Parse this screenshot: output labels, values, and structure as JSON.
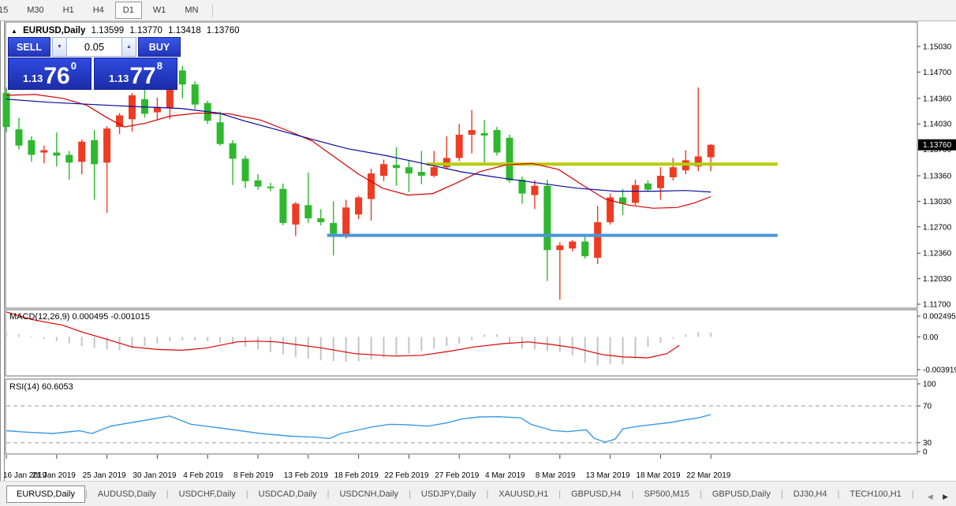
{
  "toolbar": {
    "timeframes": [
      "15",
      "M30",
      "H1",
      "H4",
      "D1",
      "W1",
      "MN"
    ],
    "active_timeframe": "D1"
  },
  "chart_header": {
    "collapse_icon": "▲",
    "symbol": "EURUSD,Daily",
    "open": "1.13599",
    "high": "1.13770",
    "low": "1.13418",
    "close": "1.13760"
  },
  "trade_panel": {
    "sell_label": "SELL",
    "buy_label": "BUY",
    "volume": "0.05",
    "spin_down_icon": "▼",
    "spin_up_icon": "▲",
    "sell_price_small": "1.13",
    "sell_price_big": "76",
    "sell_price_sup": "0",
    "buy_price_small": "1.13",
    "buy_price_big": "77",
    "buy_price_sup": "8"
  },
  "macd_panel": {
    "title": "MACD(12,26,9)",
    "value1": "0.000495",
    "value2": "-0.001015",
    "axis_labels": [
      "0.002495",
      "0.00",
      "-0.003919"
    ]
  },
  "rsi_panel": {
    "title": "RSI(14)",
    "value": "60.6053",
    "axis_labels": [
      "100",
      "70",
      "30",
      "0"
    ]
  },
  "price_axis": {
    "labels": [
      "1.15030",
      "1.14700",
      "1.14360",
      "1.14030",
      "1.13700",
      "1.13360",
      "1.13030",
      "1.12700",
      "1.12360",
      "1.12030",
      "1.11700"
    ],
    "current_price": "1.13760"
  },
  "date_axis": {
    "labels": [
      "16 Jan 2019",
      "21 Jan 2019",
      "25 Jan 2019",
      "30 Jan 2019",
      "4 Feb 2019",
      "8 Feb 2019",
      "13 Feb 2019",
      "18 Feb 2019",
      "22 Feb 2019",
      "27 Feb 2019",
      "4 Mar 2019",
      "8 Mar 2019",
      "13 Mar 2019",
      "18 Mar 2019",
      "22 Mar 2019"
    ],
    "label_step": 4
  },
  "tabs": {
    "items": [
      "EURUSD,Daily",
      "AUDUSD,Daily",
      "USDCHF,Daily",
      "USDCAD,Daily",
      "USDCNH,Daily",
      "USDJPY,Daily",
      "XAUUSD,H1",
      "GBPUSD,H4",
      "SP500,M15",
      "GBPUSD,Daily",
      "DJ30,H4",
      "TECH100,H1",
      "Ul"
    ],
    "active": "EURUSD,Daily",
    "scroll_left_icon": "◀",
    "scroll_right_icon": "▶"
  },
  "colors": {
    "bull_candle": "#ee3b22",
    "bear_candle": "#2eb82e",
    "ma_fast_red": "#d40000",
    "ma_slow_blue": "#0a0aa0",
    "macd_bar": "#c4c4c4",
    "macd_signal": "#dd0000",
    "rsi_line": "#3a9ae8",
    "hline_yellow": "#b5cc00",
    "hline_blue": "#4a96d8",
    "price_tag_bg": "#000000",
    "price_tag_text": "#ffffff",
    "panel_border": "#707070",
    "grid_dash": "#bbbbbb"
  },
  "chart_data": {
    "type": "candlestick",
    "title": "EURUSD,Daily",
    "ylim": [
      1.117,
      1.1503
    ],
    "legend_position": "none",
    "grid": false,
    "note": "red bodies = up days, green bodies = down days; OHLC per bar below",
    "candles": [
      [
        1.1443,
        1.145,
        1.1392,
        1.1399,
        "g"
      ],
      [
        1.1396,
        1.1411,
        1.137,
        1.1375,
        "g"
      ],
      [
        1.1382,
        1.1387,
        1.1354,
        1.1363,
        "g"
      ],
      [
        1.1366,
        1.1375,
        1.1352,
        1.1369,
        "r"
      ],
      [
        1.1366,
        1.1392,
        1.1348,
        1.1362,
        "g"
      ],
      [
        1.1363,
        1.1368,
        1.1331,
        1.1353,
        "g"
      ],
      [
        1.1354,
        1.1383,
        1.1338,
        1.138,
        "r"
      ],
      [
        1.1382,
        1.1395,
        1.1305,
        1.1351,
        "g"
      ],
      [
        1.1353,
        1.14,
        1.1288,
        1.1397,
        "r"
      ],
      [
        1.1399,
        1.1417,
        1.139,
        1.1414,
        "r"
      ],
      [
        1.1409,
        1.1443,
        1.1393,
        1.144,
        "r"
      ],
      [
        1.1435,
        1.1448,
        1.1411,
        1.1416,
        "g"
      ],
      [
        1.1418,
        1.1437,
        1.1409,
        1.1425,
        "r"
      ],
      [
        1.1423,
        1.1452,
        1.1409,
        1.1447,
        "r"
      ],
      [
        1.1472,
        1.1478,
        1.1436,
        1.1454,
        "g"
      ],
      [
        1.1454,
        1.1458,
        1.1422,
        1.1428,
        "g"
      ],
      [
        1.143,
        1.1433,
        1.1403,
        1.1407,
        "g"
      ],
      [
        1.1405,
        1.1419,
        1.1375,
        1.1377,
        "g"
      ],
      [
        1.1378,
        1.1382,
        1.1324,
        1.1358,
        "g"
      ],
      [
        1.1358,
        1.1362,
        1.132,
        1.1329,
        "g"
      ],
      [
        1.133,
        1.1338,
        1.1318,
        1.1322,
        "g"
      ],
      [
        1.1322,
        1.1327,
        1.1316,
        1.132,
        "g"
      ],
      [
        1.1319,
        1.1326,
        1.1272,
        1.1275,
        "g"
      ],
      [
        1.1273,
        1.1302,
        1.1258,
        1.13,
        "r"
      ],
      [
        1.1298,
        1.134,
        1.1275,
        1.1281,
        "g"
      ],
      [
        1.1281,
        1.1293,
        1.1272,
        1.1276,
        "g"
      ],
      [
        1.1275,
        1.1303,
        1.1233,
        1.1261,
        "g"
      ],
      [
        1.1259,
        1.1305,
        1.1255,
        1.1295,
        "r"
      ],
      [
        1.1286,
        1.131,
        1.128,
        1.1308,
        "r"
      ],
      [
        1.1306,
        1.1345,
        1.1278,
        1.1339,
        "r"
      ],
      [
        1.1336,
        1.1357,
        1.1329,
        1.1351,
        "r"
      ],
      [
        1.135,
        1.1373,
        1.1323,
        1.1346,
        "g"
      ],
      [
        1.1347,
        1.1356,
        1.1315,
        1.1339,
        "g"
      ],
      [
        1.1341,
        1.1368,
        1.1325,
        1.1336,
        "g"
      ],
      [
        1.1336,
        1.1368,
        1.1334,
        1.1347,
        "r"
      ],
      [
        1.1347,
        1.1387,
        1.1344,
        1.1359,
        "r"
      ],
      [
        1.1359,
        1.1403,
        1.1355,
        1.1389,
        "r"
      ],
      [
        1.1389,
        1.1421,
        1.1365,
        1.1395,
        "r"
      ],
      [
        1.1391,
        1.1408,
        1.1352,
        1.1388,
        "g"
      ],
      [
        1.1395,
        1.1399,
        1.1362,
        1.1366,
        "g"
      ],
      [
        1.1385,
        1.1389,
        1.1327,
        1.133,
        "g"
      ],
      [
        1.1331,
        1.1335,
        1.13,
        1.1313,
        "g"
      ],
      [
        1.1311,
        1.133,
        1.1293,
        1.1323,
        "r"
      ],
      [
        1.1323,
        1.1331,
        1.12,
        1.124,
        "g"
      ],
      [
        1.124,
        1.125,
        1.1176,
        1.1246,
        "r"
      ],
      [
        1.1242,
        1.1253,
        1.1238,
        1.1251,
        "r"
      ],
      [
        1.1251,
        1.1258,
        1.1229,
        1.1232,
        "g"
      ],
      [
        1.123,
        1.1297,
        1.1222,
        1.1276,
        "r"
      ],
      [
        1.1276,
        1.1313,
        1.1273,
        1.1308,
        "r"
      ],
      [
        1.1308,
        1.1319,
        1.1285,
        1.13,
        "g"
      ],
      [
        1.1301,
        1.1331,
        1.1298,
        1.1324,
        "r"
      ],
      [
        1.1326,
        1.133,
        1.1315,
        1.1318,
        "g"
      ],
      [
        1.132,
        1.1347,
        1.1305,
        1.1336,
        "r"
      ],
      [
        1.1334,
        1.1359,
        1.133,
        1.1347,
        "r"
      ],
      [
        1.1343,
        1.1369,
        1.1338,
        1.1356,
        "r"
      ],
      [
        1.1348,
        1.145,
        1.1342,
        1.1361,
        "r"
      ],
      [
        1.13599,
        1.1377,
        1.13418,
        1.1376,
        "r"
      ]
    ],
    "ma_fast_red": [
      [
        0,
        1.144
      ],
      [
        2.3,
        1.1441
      ],
      [
        4.5,
        1.1436
      ],
      [
        6.4,
        1.1427
      ],
      [
        8,
        1.1411
      ],
      [
        9.4,
        1.1399
      ],
      [
        11.1,
        1.1404
      ],
      [
        13,
        1.1413
      ],
      [
        15.2,
        1.1417
      ],
      [
        17.7,
        1.1416
      ],
      [
        20.2,
        1.1408
      ],
      [
        22.4,
        1.1394
      ],
      [
        24.3,
        1.1381
      ],
      [
        26.1,
        1.136
      ],
      [
        28,
        1.1338
      ],
      [
        29.9,
        1.132
      ],
      [
        31.9,
        1.1311
      ],
      [
        33.9,
        1.1313
      ],
      [
        35.7,
        1.1326
      ],
      [
        37.6,
        1.1341
      ],
      [
        39.7,
        1.135
      ],
      [
        41.8,
        1.1352
      ],
      [
        43.9,
        1.1344
      ],
      [
        45.8,
        1.1324
      ],
      [
        47.6,
        1.1306
      ],
      [
        49.5,
        1.1298
      ],
      [
        51.4,
        1.1294
      ],
      [
        53.3,
        1.1295
      ],
      [
        54.7,
        1.1301
      ],
      [
        56,
        1.1309
      ]
    ],
    "ma_slow_blue": [
      [
        0,
        1.1435
      ],
      [
        3.3,
        1.1431
      ],
      [
        7,
        1.1428
      ],
      [
        10.8,
        1.1425
      ],
      [
        13.9,
        1.1423
      ],
      [
        16.9,
        1.1417
      ],
      [
        18.9,
        1.1407
      ],
      [
        21.4,
        1.1396
      ],
      [
        24.3,
        1.1383
      ],
      [
        27.1,
        1.1371
      ],
      [
        30.2,
        1.1362
      ],
      [
        33.4,
        1.1351
      ],
      [
        36.2,
        1.1341
      ],
      [
        39,
        1.1334
      ],
      [
        42.1,
        1.1327
      ],
      [
        45.3,
        1.132
      ],
      [
        48.4,
        1.1316
      ],
      [
        51.5,
        1.1316
      ],
      [
        54,
        1.1317
      ],
      [
        56,
        1.1315
      ]
    ],
    "hlines": [
      {
        "name": "resistance-line",
        "price": 1.1351,
        "color": "#b5cc00",
        "i1": 33.4,
        "i2": 61.3,
        "width": 4
      },
      {
        "name": "support-line",
        "price": 1.1259,
        "color": "#4a96d8",
        "i1": 25.5,
        "i2": 61.3,
        "width": 4
      }
    ],
    "macd": {
      "params": "12,26,9",
      "last_main": 0.000495,
      "last_signal": -0.001015,
      "axis_max": 0.002495,
      "axis_min": -0.003919,
      "bars": [
        0.0005,
        0.0003,
        0.0001,
        -0.0002,
        -0.0005,
        -0.0008,
        -0.0011,
        -0.0013,
        -0.0015,
        -0.0016,
        -0.0014,
        -0.0011,
        -0.0008,
        -0.0005,
        -0.0004,
        -0.0004,
        -0.0005,
        -0.0007,
        -0.0009,
        -0.0012,
        -0.0015,
        -0.0018,
        -0.0021,
        -0.0024,
        -0.0026,
        -0.0028,
        -0.0029,
        -0.003,
        -0.0029,
        -0.0027,
        -0.0025,
        -0.0022,
        -0.002,
        -0.0017,
        -0.0014,
        -0.0011,
        -0.0008,
        -0.0004,
        0.0003,
        0.0003,
        -0.0008,
        -0.0014,
        -0.0015,
        -0.0017,
        -0.0018,
        -0.0022,
        -0.0031,
        -0.0034,
        -0.0032,
        -0.0033,
        -0.0026,
        -0.0012,
        -0.0007,
        -0.0002,
        0.0003,
        0.0006,
        0.0005
      ],
      "signal": [
        [
          0,
          0.003
        ],
        [
          2,
          0.0021
        ],
        [
          4.5,
          0.0014
        ],
        [
          6,
          0.0006
        ],
        [
          7.8,
          -0.0002
        ],
        [
          10,
          -0.0012
        ],
        [
          12,
          -0.0015
        ],
        [
          14,
          -0.0016
        ],
        [
          16,
          -0.0013
        ],
        [
          18.3,
          -0.0006
        ],
        [
          20,
          -0.0005
        ],
        [
          21.5,
          -0.0006
        ],
        [
          23,
          -0.0009
        ],
        [
          25,
          -0.0013
        ],
        [
          27.7,
          -0.002
        ],
        [
          30.8,
          -0.0023
        ],
        [
          33,
          -0.0022
        ],
        [
          35.3,
          -0.0017
        ],
        [
          37.2,
          -0.0012
        ],
        [
          39.5,
          -0.0008
        ],
        [
          41.5,
          -0.0006
        ],
        [
          43.3,
          -0.0009
        ],
        [
          45.2,
          -0.0013
        ],
        [
          47.3,
          -0.0021
        ],
        [
          49,
          -0.0024
        ],
        [
          51,
          -0.0025
        ],
        [
          52.5,
          -0.002
        ],
        [
          53.5,
          -0.00102
        ]
      ]
    },
    "rsi": {
      "period": 14,
      "last": 60.6053,
      "levels": [
        70,
        30
      ],
      "points": [
        [
          0,
          43
        ],
        [
          1.6,
          41.5
        ],
        [
          3.7,
          40
        ],
        [
          5.8,
          43
        ],
        [
          6.8,
          40
        ],
        [
          8.3,
          48
        ],
        [
          10,
          52
        ],
        [
          13,
          59
        ],
        [
          14.7,
          50
        ],
        [
          17,
          46
        ],
        [
          20.2,
          40
        ],
        [
          22.7,
          37
        ],
        [
          24.6,
          36
        ],
        [
          25.7,
          34.5
        ],
        [
          26.6,
          40
        ],
        [
          27.7,
          43
        ],
        [
          29,
          47
        ],
        [
          30.4,
          50
        ],
        [
          31.9,
          49.5
        ],
        [
          33.5,
          48
        ],
        [
          35,
          51.5
        ],
        [
          36.3,
          56
        ],
        [
          37.6,
          58
        ],
        [
          39.2,
          58.3
        ],
        [
          40.9,
          57
        ],
        [
          41.7,
          50
        ],
        [
          43.4,
          43.3
        ],
        [
          44.6,
          42
        ],
        [
          45.5,
          43.3
        ],
        [
          46.1,
          44
        ],
        [
          46.7,
          35
        ],
        [
          47.6,
          30.5
        ],
        [
          48.4,
          34
        ],
        [
          49,
          45
        ],
        [
          50.3,
          48
        ],
        [
          51.5,
          50
        ],
        [
          52.8,
          52
        ],
        [
          54,
          55
        ],
        [
          55,
          57
        ],
        [
          56,
          60.6
        ]
      ]
    }
  }
}
